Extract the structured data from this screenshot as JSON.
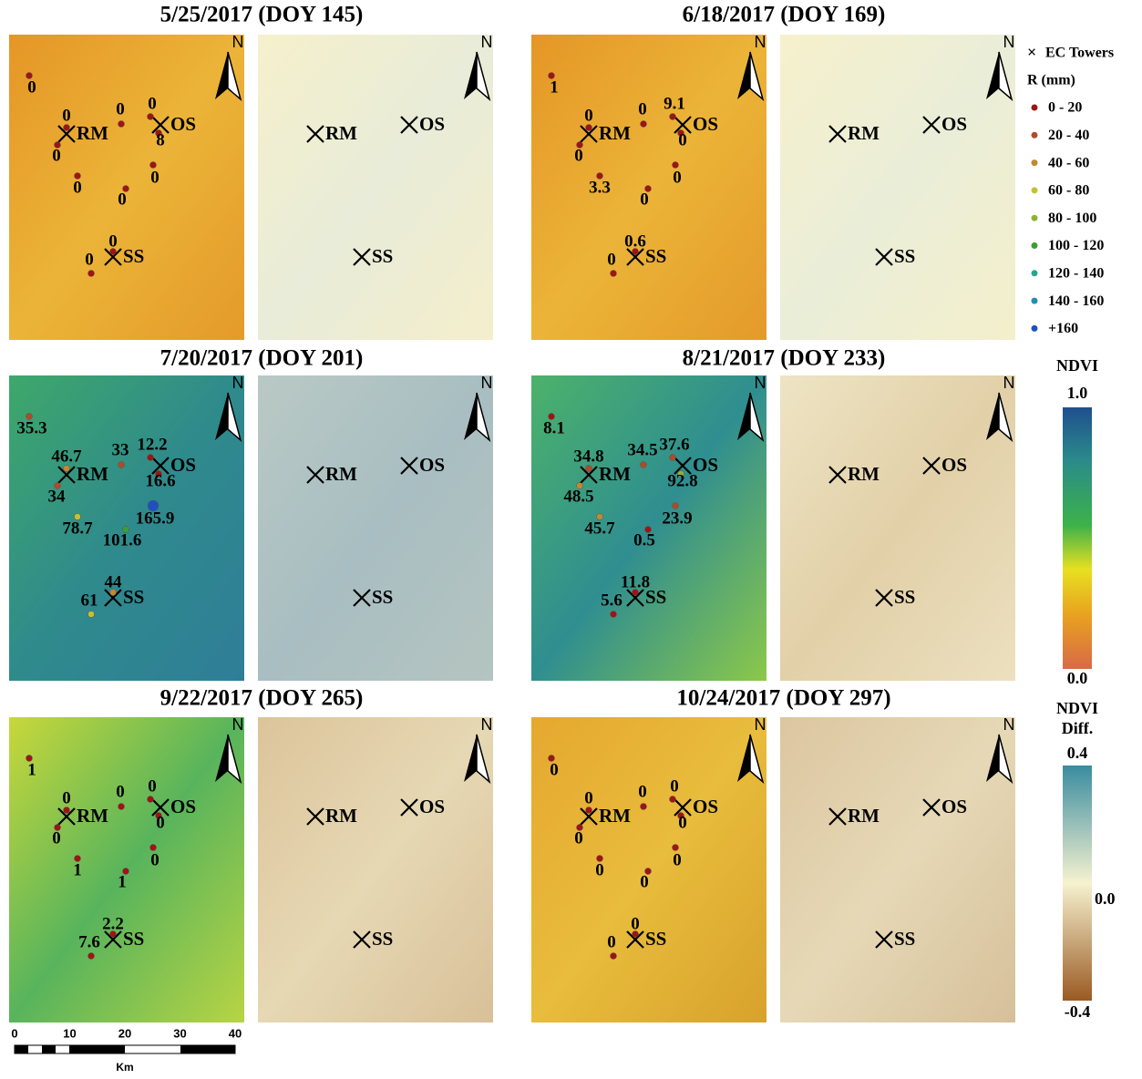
{
  "north": "N",
  "towers": [
    "RM",
    "OS",
    "SS"
  ],
  "panels": [
    {
      "title": "5/25/2017 (DOY 145)",
      "gauges": [
        {
          "label": "0",
          "color": "#a01414"
        },
        {
          "label": "0",
          "color": "#a01414"
        },
        {
          "label": "0",
          "color": "#a01414"
        },
        {
          "label": "0",
          "color": "#a01414"
        },
        {
          "label": "0",
          "color": "#a01414"
        },
        {
          "label": "8",
          "color": "#a01414"
        },
        {
          "label": "0",
          "color": "#a01414"
        },
        {
          "label": "0",
          "color": "#a01414"
        },
        {
          "label": "0",
          "color": "#a01414"
        },
        {
          "label": "0",
          "color": "#a01414"
        },
        {
          "label": "0",
          "color": "#a01414"
        }
      ]
    },
    {
      "title": "6/18/2017 (DOY 169)",
      "gauges": [
        {
          "label": "1",
          "color": "#a01414"
        },
        {
          "label": "0",
          "color": "#a01414"
        },
        {
          "label": "0",
          "color": "#a01414"
        },
        {
          "label": "0",
          "color": "#a01414"
        },
        {
          "label": "9.1",
          "color": "#a01414"
        },
        {
          "label": "0",
          "color": "#a01414"
        },
        {
          "label": "3.3",
          "color": "#a01414"
        },
        {
          "label": "0",
          "color": "#a01414"
        },
        {
          "label": "0",
          "color": "#a01414"
        },
        {
          "label": "0.6",
          "color": "#a01414"
        },
        {
          "label": "0",
          "color": "#a01414"
        }
      ]
    },
    {
      "title": "7/20/2017 (DOY 201)",
      "gauges": [
        {
          "label": "35.3",
          "color": "#b04a28"
        },
        {
          "label": "46.7",
          "color": "#c08a30"
        },
        {
          "label": "34",
          "color": "#b04a28"
        },
        {
          "label": "33",
          "color": "#b04a28"
        },
        {
          "label": "12.2",
          "color": "#a01414"
        },
        {
          "label": "16.6",
          "color": "#a01414"
        },
        {
          "label": "78.7",
          "color": "#c8c030"
        },
        {
          "label": "101.6",
          "color": "#3c9e32"
        },
        {
          "label": "165.9",
          "color": "#1f50c0"
        },
        {
          "label": "44",
          "color": "#c08a30"
        },
        {
          "label": "61",
          "color": "#c8c030"
        }
      ]
    },
    {
      "title": "8/21/2017 (DOY 233)",
      "gauges": [
        {
          "label": "8.1",
          "color": "#a01414"
        },
        {
          "label": "34.8",
          "color": "#b04a28"
        },
        {
          "label": "48.5",
          "color": "#c08a30"
        },
        {
          "label": "34.5",
          "color": "#b04a28"
        },
        {
          "label": "37.6",
          "color": "#b04a28"
        },
        {
          "label": "92.8",
          "color": "#8cb432"
        },
        {
          "label": "45.7",
          "color": "#c08a30"
        },
        {
          "label": "0.5",
          "color": "#a01414"
        },
        {
          "label": "23.9",
          "color": "#b04a28"
        },
        {
          "label": "11.8",
          "color": "#a01414"
        },
        {
          "label": "5.6",
          "color": "#a01414"
        }
      ]
    },
    {
      "title": "9/22/2017 (DOY 265)",
      "gauges": [
        {
          "label": "1",
          "color": "#a01414"
        },
        {
          "label": "0",
          "color": "#a01414"
        },
        {
          "label": "0",
          "color": "#a01414"
        },
        {
          "label": "0",
          "color": "#a01414"
        },
        {
          "label": "0",
          "color": "#a01414"
        },
        {
          "label": "0",
          "color": "#a01414"
        },
        {
          "label": "1",
          "color": "#a01414"
        },
        {
          "label": "1",
          "color": "#a01414"
        },
        {
          "label": "0",
          "color": "#a01414"
        },
        {
          "label": "2.2",
          "color": "#a01414"
        },
        {
          "label": "7.6",
          "color": "#a01414"
        }
      ]
    },
    {
      "title": "10/24/2017 (DOY 297)",
      "gauges": [
        {
          "label": "0",
          "color": "#a01414"
        },
        {
          "label": "0",
          "color": "#a01414"
        },
        {
          "label": "0",
          "color": "#a01414"
        },
        {
          "label": "0",
          "color": "#a01414"
        },
        {
          "label": "0",
          "color": "#a01414"
        },
        {
          "label": "0",
          "color": "#a01414"
        },
        {
          "label": "0",
          "color": "#a01414"
        },
        {
          "label": "0",
          "color": "#a01414"
        },
        {
          "label": "0",
          "color": "#a01414"
        },
        {
          "label": "0",
          "color": "#a01414"
        },
        {
          "label": "0",
          "color": "#a01414"
        }
      ]
    }
  ],
  "legend": {
    "towers_label": "EC Towers",
    "rain_title": "R (mm)",
    "rain_classes": [
      {
        "label": "0 - 20",
        "color": "#a01414"
      },
      {
        "label": "20 - 40",
        "color": "#b04a28"
      },
      {
        "label": "40 - 60",
        "color": "#c08a30"
      },
      {
        "label": "60 - 80",
        "color": "#c8c030"
      },
      {
        "label": "80 - 100",
        "color": "#8cb432"
      },
      {
        "label": "100 - 120",
        "color": "#3c9e32"
      },
      {
        "label": "120  - 140",
        "color": "#22a88a"
      },
      {
        "label": "140 - 160",
        "color": "#2090b0"
      },
      {
        "label": "+160",
        "color": "#1f50c0"
      }
    ]
  },
  "ndvi_bar": {
    "title": "NDVI",
    "max": "1.0",
    "min": "0.0"
  },
  "diff_bar": {
    "title": [
      "NDVI",
      "Diff."
    ],
    "max": "0.4",
    "mid": "0.0",
    "min": "-0.4"
  },
  "scale_bar": {
    "labels": [
      "0",
      "10",
      "20",
      "30",
      "40"
    ],
    "unit": "Km"
  }
}
